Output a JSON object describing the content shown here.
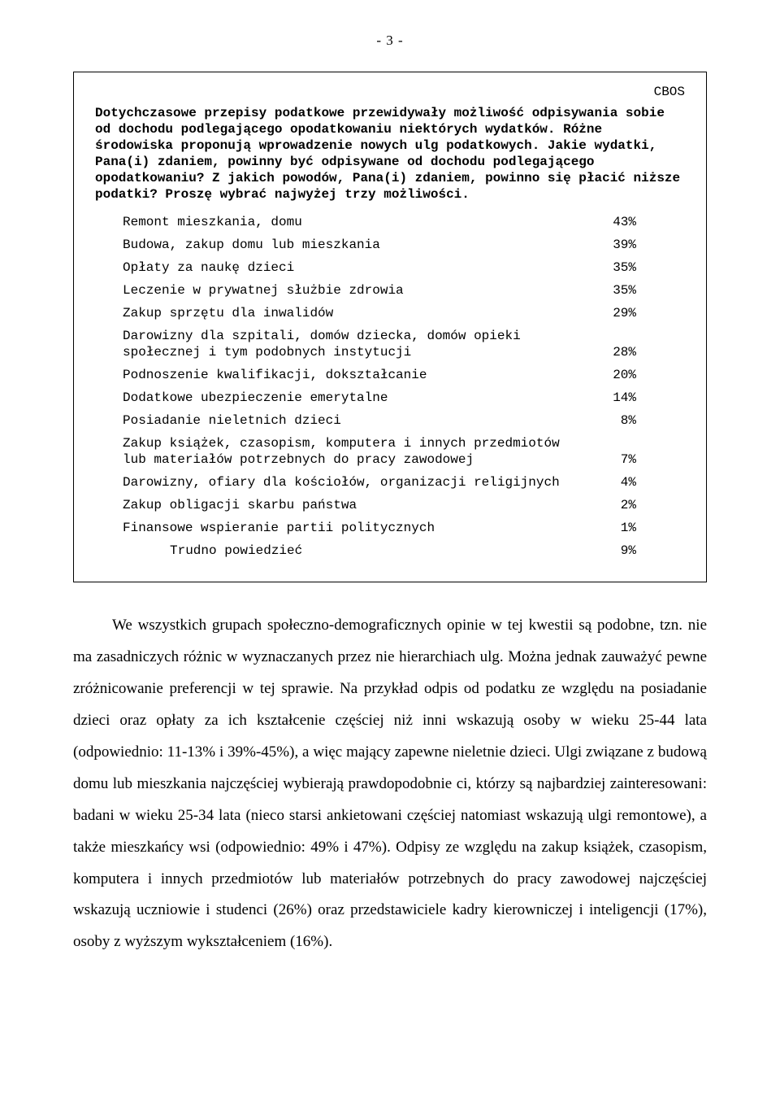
{
  "page_number": "- 3 -",
  "box": {
    "brand": "CBOS",
    "question": "Dotychczasowe przepisy podatkowe przewidywały możliwość odpisywania sobie od dochodu podlegającego opodatkowaniu niektórych wydatków. Różne środowiska proponują wprowadzenie nowych ulg podatkowych. Jakie wydatki, Pana(i) zdaniem, powinny być odpisywane od dochodu podlegającego opodatkowaniu? Z jakich powodów, Pana(i) zdaniem, powinno się płacić niższe podatki? Proszę wybrać najwyżej trzy możliwości.",
    "items": [
      {
        "label": "Remont mieszkania, domu",
        "value": "43%"
      },
      {
        "label": "Budowa, zakup domu lub mieszkania",
        "value": "39%"
      },
      {
        "label": "Opłaty za naukę dzieci",
        "value": "35%"
      },
      {
        "label": "Leczenie w prywatnej służbie zdrowia",
        "value": "35%"
      },
      {
        "label": "Zakup sprzętu dla inwalidów",
        "value": "29%"
      },
      {
        "label": "Darowizny dla szpitali, domów dziecka, domów opieki społecznej i tym podobnych instytucji",
        "value": "28%"
      },
      {
        "label": "Podnoszenie kwalifikacji, dokształcanie",
        "value": "20%"
      },
      {
        "label": "Dodatkowe ubezpieczenie emerytalne",
        "value": "14%"
      },
      {
        "label": "Posiadanie nieletnich dzieci",
        "value": "8%"
      },
      {
        "label": "Zakup książek, czasopism, komputera i innych przedmiotów lub materiałów potrzebnych do pracy zawodowej",
        "value": "7%"
      },
      {
        "label": "Darowizny, ofiary dla kościołów, organizacji religijnych",
        "value": "4%"
      },
      {
        "label": "Zakup obligacji skarbu państwa",
        "value": "2%"
      },
      {
        "label": "Finansowe wspieranie partii politycznych",
        "value": "1%"
      },
      {
        "label": "Trudno powiedzieć",
        "value": "9%",
        "indent": true
      }
    ]
  },
  "paragraph": "We wszystkich grupach społeczno-demograficznych opinie w tej kwestii są podobne, tzn. nie ma zasadniczych różnic w wyznaczanych przez nie hierarchiach ulg. Można jednak zauważyć pewne zróżnicowanie preferencji w tej sprawie. Na przykład odpis od podatku ze względu na posiadanie dzieci oraz opłaty za ich kształcenie częściej niż inni wskazują osoby w wieku 25-44 lata (odpowiednio: 11-13% i 39%-45%), a więc mający zapewne nieletnie dzieci. Ulgi związane z budową domu lub mieszkania najczęściej wybierają prawdopodobnie ci, którzy są najbardziej zainteresowani: badani w wieku 25-34 lata (nieco starsi ankietowani częściej natomiast wskazują ulgi remontowe), a także mieszkańcy wsi (odpowiednio: 49% i 47%). Odpisy ze względu na zakup książek, czasopism, komputera i innych przedmiotów lub materiałów potrzebnych do pracy zawodowej najczęściej wskazują uczniowie i studenci (26%) oraz przedstawiciele kadry kierowniczej i inteligencji (17%), osoby z wyższym wykształceniem (16%)."
}
